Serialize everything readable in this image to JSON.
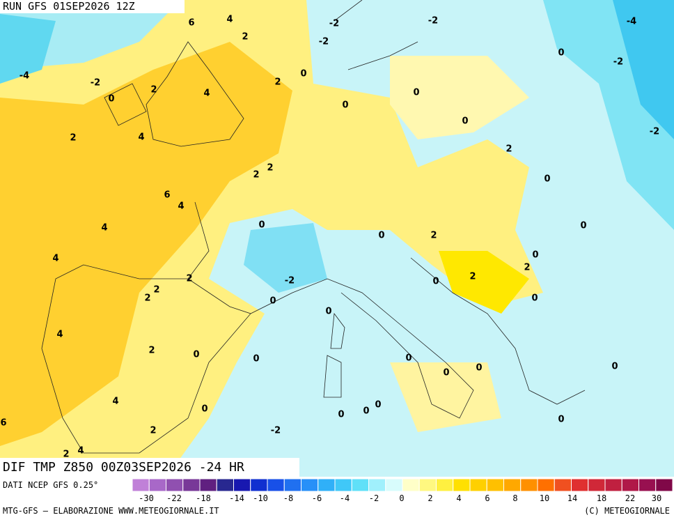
{
  "header": {
    "run": "RUN GFS 01SEP2026 12Z"
  },
  "map": {
    "title": "DIF TMP Z850 00Z03SEP2026 -24 HR",
    "contour_labels": [
      6,
      4,
      2,
      -2,
      -2,
      -2,
      -4,
      0,
      -2,
      -4,
      -2,
      0,
      2,
      4,
      2,
      0,
      0,
      0,
      0,
      -2,
      2,
      4,
      2,
      2,
      2,
      0,
      6,
      4,
      4,
      0,
      0,
      0,
      2,
      4,
      0,
      2,
      2,
      -2,
      0,
      2,
      2,
      2,
      0,
      0,
      0,
      4,
      2,
      0,
      0,
      0,
      0,
      0,
      0,
      4,
      0,
      0,
      0,
      0,
      0,
      6,
      2,
      -2,
      2,
      4
    ]
  },
  "legend": {
    "source": "DATI NCEP GFS 0.25°",
    "colors": [
      "#c080d8",
      "#a868c8",
      "#9050b0",
      "#783898",
      "#602080",
      "#282890",
      "#1818b0",
      "#1030d0",
      "#1850e8",
      "#2070f0",
      "#2890f8",
      "#30b0f8",
      "#40c8f8",
      "#60e0f8",
      "#a0f0fc",
      "#d8fcfc",
      "#ffffc8",
      "#fff880",
      "#fff040",
      "#ffe000",
      "#ffd000",
      "#ffc000",
      "#ffa800",
      "#ff9000",
      "#ff7000",
      "#f05020",
      "#e03030",
      "#d02838",
      "#c02040",
      "#b01848",
      "#981050",
      "#800848"
    ],
    "labels": [
      -30,
      -22,
      -18,
      -14,
      -10,
      -8,
      -6,
      -4,
      -2,
      0,
      2,
      4,
      6,
      8,
      10,
      14,
      18,
      22,
      30
    ]
  },
  "footer": {
    "left": "MTG-GFS — ELABORAZIONE WWW.METEOGIORNALE.IT",
    "right": "(C) METEOGIORNALE"
  }
}
